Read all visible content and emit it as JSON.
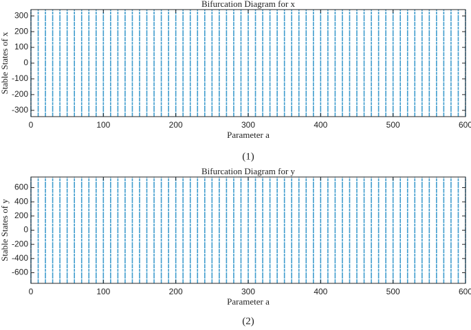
{
  "chart_data": [
    {
      "type": "bifurcation",
      "title": "Bifurcation Diagram for x",
      "x_label": "Parameter a",
      "y_label": "Stable States of x",
      "caption": "(1)",
      "color": "#3f9ccd",
      "xlim": [
        0,
        600
      ],
      "xticks": [
        0,
        100,
        200,
        300,
        400,
        500,
        600
      ],
      "ylim": [
        -340,
        340
      ],
      "yticks": [
        -300,
        -200,
        -100,
        0,
        100,
        200,
        300
      ],
      "x": [
        0,
        10,
        20,
        30,
        40,
        50,
        60,
        70,
        80,
        90,
        100,
        110,
        120,
        130,
        140,
        150,
        160,
        170,
        180,
        190,
        200,
        210,
        220,
        230,
        240,
        250,
        260,
        270,
        280,
        290,
        300,
        310,
        320,
        330,
        340,
        350,
        360,
        370,
        380,
        390,
        400,
        410,
        420,
        430,
        440,
        450,
        460,
        470,
        480,
        490,
        500,
        510,
        520,
        530,
        540,
        550,
        560,
        570,
        580,
        590,
        600
      ],
      "low": [
        -340,
        -340,
        -340,
        -340,
        -340,
        -340,
        -340,
        -340,
        -340,
        -340,
        -340,
        -340,
        -340,
        -340,
        -340,
        -340,
        -340,
        -340,
        -340,
        -340,
        -340,
        -340,
        -340,
        -340,
        -340,
        -340,
        -340,
        -340,
        -340,
        -340,
        -340,
        -340,
        -340,
        -340,
        -340,
        -340,
        -340,
        -340,
        -340,
        -340,
        -340,
        -340,
        -340,
        -340,
        -340,
        -340,
        -340,
        -340,
        -340,
        -340,
        -340,
        -340,
        -340,
        -340,
        -340,
        -340,
        -340,
        -340,
        -340,
        -340,
        -340
      ],
      "high": [
        340,
        340,
        340,
        340,
        340,
        340,
        340,
        340,
        340,
        340,
        340,
        340,
        340,
        340,
        340,
        340,
        340,
        340,
        340,
        340,
        340,
        340,
        340,
        340,
        340,
        340,
        340,
        340,
        340,
        340,
        340,
        340,
        340,
        340,
        340,
        340,
        340,
        340,
        340,
        340,
        340,
        340,
        340,
        340,
        340,
        340,
        340,
        340,
        340,
        340,
        340,
        340,
        340,
        340,
        340,
        340,
        340,
        340,
        340,
        340,
        340
      ]
    },
    {
      "type": "bifurcation",
      "title": "Bifurcation Diagram for y",
      "x_label": "Parameter a",
      "y_label": "Stable States of y",
      "caption": "(2)",
      "color": "#3f9ccd",
      "xlim": [
        0,
        600
      ],
      "xticks": [
        0,
        100,
        200,
        300,
        400,
        500,
        600
      ],
      "ylim": [
        -750,
        750
      ],
      "yticks": [
        -600,
        -400,
        -200,
        0,
        200,
        400,
        600
      ],
      "x": [
        0,
        10,
        20,
        30,
        40,
        50,
        60,
        70,
        80,
        90,
        100,
        110,
        120,
        130,
        140,
        150,
        160,
        170,
        180,
        190,
        200,
        210,
        220,
        230,
        240,
        250,
        260,
        270,
        280,
        290,
        300,
        310,
        320,
        330,
        340,
        350,
        360,
        370,
        380,
        390,
        400,
        410,
        420,
        430,
        440,
        450,
        460,
        470,
        480,
        490,
        500,
        510,
        520,
        530,
        540,
        550,
        560,
        570,
        580,
        590,
        600
      ],
      "low": [
        -750,
        -750,
        -750,
        -750,
        -750,
        -750,
        -750,
        -750,
        -750,
        -750,
        -750,
        -750,
        -750,
        -750,
        -750,
        -750,
        -750,
        -750,
        -750,
        -750,
        -750,
        -750,
        -750,
        -750,
        -750,
        -750,
        -750,
        -750,
        -750,
        -750,
        -750,
        -750,
        -750,
        -750,
        -750,
        -750,
        -750,
        -750,
        -750,
        -750,
        -750,
        -750,
        -750,
        -750,
        -750,
        -750,
        -750,
        -750,
        -750,
        -750,
        -750,
        -750,
        -750,
        -750,
        -750,
        -750,
        -750,
        -750,
        -750,
        -750,
        -750
      ],
      "high": [
        750,
        750,
        750,
        750,
        750,
        750,
        750,
        750,
        750,
        750,
        750,
        750,
        750,
        750,
        750,
        750,
        750,
        750,
        750,
        750,
        750,
        750,
        750,
        750,
        750,
        750,
        750,
        750,
        750,
        750,
        750,
        750,
        750,
        750,
        750,
        750,
        750,
        750,
        750,
        750,
        750,
        750,
        750,
        750,
        750,
        750,
        750,
        750,
        750,
        750,
        750,
        750,
        750,
        750,
        750,
        750,
        750,
        750,
        750,
        750,
        750
      ]
    }
  ]
}
